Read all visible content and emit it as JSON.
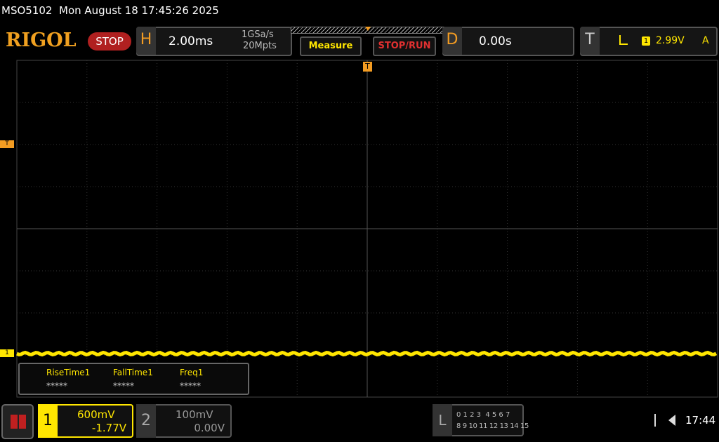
{
  "status_bar": {
    "model": "MSO5102",
    "datetime": "Mon August 18 17:45:26 2025"
  },
  "toolbar": {
    "logo": "RIGOL",
    "state": "STOP",
    "horizontal": {
      "label": "H",
      "timebase": "2.00ms",
      "sample_rate": "1GSa/s",
      "memory_depth": "20Mpts"
    },
    "buttons": [
      "Measure",
      "STOP/RUN"
    ],
    "delay": {
      "label": "D",
      "value": "0.00s"
    },
    "trigger": {
      "label": "T",
      "source": "1",
      "level": "2.99V",
      "mode": "A"
    }
  },
  "markers": {
    "trigger_position": "T",
    "trigger_level": "T",
    "channel1_offset": "1"
  },
  "measurements": [
    {
      "name": "RiseTime1",
      "value": "*****"
    },
    {
      "name": "FallTime1",
      "value": "*****"
    },
    {
      "name": "Freq1",
      "value": "*****"
    }
  ],
  "channels": [
    {
      "label": "1",
      "scale": "600mV",
      "offset": "-1.77V"
    },
    {
      "label": "2",
      "scale": "100mV",
      "offset": "0.00V"
    }
  ],
  "logic": {
    "label": "L",
    "row1": "0 1 2 3  4 5 6 7",
    "row2": "8 9 10 11 12 13 14 15"
  },
  "clock": "17:44"
}
